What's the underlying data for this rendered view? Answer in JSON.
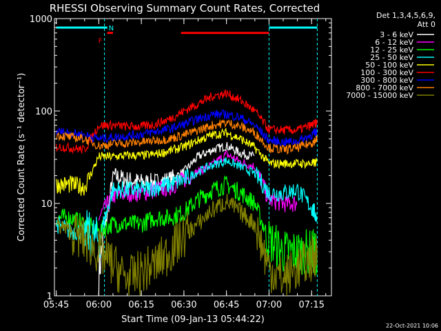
{
  "chart_data": {
    "type": "line",
    "title": "RHESSI Observing Summary Count Rates, Corrected",
    "xlabel": "Start Time (09-Jan-13 05:44:22)",
    "ylabel": "Corrected Count Rate (s⁻¹ detector⁻¹)",
    "y_scale": "log",
    "ylim": [
      1,
      1000
    ],
    "xlim": [
      "05:44:22",
      "07:22:00"
    ],
    "x_ticks": [
      "05:45",
      "06:00",
      "06:15",
      "06:30",
      "06:45",
      "07:00",
      "07:15"
    ],
    "y_ticks": [
      "1",
      "10",
      "100",
      "1000"
    ],
    "legend": {
      "header": [
        "Det 1,3,4,5,6,9,",
        "Att 0"
      ],
      "placement": "right"
    },
    "timestamp": "22-Oct-2021 10:06",
    "annotations": [
      {
        "text": "F",
        "color": "#ff0000"
      },
      {
        "text": "N",
        "color": "#00ffff"
      }
    ],
    "bars": [
      {
        "label": "night",
        "color": "#00ffff",
        "x": [
          "05:45",
          "06:03"
        ],
        "level": 800
      },
      {
        "label": "flare",
        "color": "#ff0000",
        "x": [
          "06:03",
          "06:05"
        ],
        "level": 700
      },
      {
        "label": "flare",
        "color": "#ff0000",
        "x": [
          "06:29",
          "07:00"
        ],
        "level": 700
      },
      {
        "label": "night",
        "color": "#00ffff",
        "x": [
          "07:00",
          "07:17"
        ],
        "level": 800
      }
    ],
    "gaps": [
      "06:02",
      "07:00",
      "07:17"
    ],
    "x": [
      "05:45",
      "05:50",
      "05:55",
      "06:00",
      "06:05",
      "06:10",
      "06:15",
      "06:20",
      "06:25",
      "06:30",
      "06:35",
      "06:40",
      "06:45",
      "06:50",
      "06:55",
      "07:00",
      "07:05",
      "07:10",
      "07:15",
      "07:17"
    ],
    "series": [
      {
        "name": "3 - 6 keV",
        "color": "#ffffff",
        "values": [
          null,
          null,
          null,
          1.8,
          20,
          18,
          17,
          17,
          18,
          22,
          32,
          38,
          42,
          35,
          32,
          null,
          null,
          null,
          null,
          null
        ]
      },
      {
        "name": "6 - 12 keV",
        "color": "#ff00ff",
        "values": [
          null,
          null,
          null,
          7,
          12,
          13,
          13,
          14,
          15,
          18,
          22,
          26,
          34,
          28,
          25,
          11,
          10,
          10,
          null,
          null
        ]
      },
      {
        "name": "12 - 25 keV",
        "color": "#00ff00",
        "values": [
          7,
          7,
          6,
          5,
          6,
          6,
          6,
          7,
          7,
          8,
          11,
          14,
          16,
          13,
          10,
          4,
          3,
          3,
          3,
          3
        ]
      },
      {
        "name": "25 - 50 keV",
        "color": "#00ffff",
        "values": [
          6,
          5,
          5,
          4,
          14,
          14,
          14,
          15,
          16,
          18,
          22,
          26,
          29,
          25,
          21,
          13,
          13,
          14,
          9,
          7
        ]
      },
      {
        "name": "50 - 100 keV",
        "color": "#ffff00",
        "values": [
          16,
          16,
          15,
          32,
          32,
          33,
          33,
          34,
          37,
          41,
          48,
          55,
          58,
          50,
          40,
          27,
          27,
          27,
          27,
          28
        ]
      },
      {
        "name": "100 - 300 keV",
        "color": "#ff0000",
        "values": [
          41,
          40,
          38,
          70,
          70,
          68,
          68,
          72,
          82,
          100,
          120,
          145,
          155,
          130,
          100,
          63,
          62,
          62,
          70,
          75
        ]
      },
      {
        "name": "300 - 800 keV",
        "color": "#0000ff",
        "values": [
          60,
          58,
          55,
          50,
          52,
          54,
          56,
          60,
          64,
          72,
          82,
          92,
          92,
          85,
          70,
          48,
          46,
          47,
          55,
          60
        ]
      },
      {
        "name": "800 - 7000 keV",
        "color": "#ff8000",
        "values": [
          55,
          52,
          50,
          42,
          44,
          45,
          46,
          48,
          50,
          55,
          62,
          70,
          75,
          68,
          58,
          40,
          38,
          40,
          45,
          50
        ]
      },
      {
        "name": "7000 - 15000 keV",
        "color": "#808000",
        "values": [
          6,
          5,
          4,
          3,
          2.2,
          1.5,
          1.8,
          2.2,
          3,
          4.5,
          6,
          8.5,
          10.5,
          8,
          6,
          2,
          1.5,
          2,
          2.5,
          3
        ]
      }
    ]
  }
}
